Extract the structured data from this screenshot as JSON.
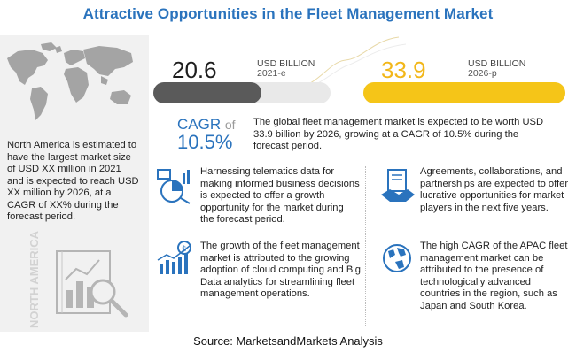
{
  "title": "Attractive Opportunities in the Fleet Management Market",
  "left_panel": {
    "text": "North America is estimated to have the largest market size of USD XX million in 2021 and is expected to reach USD XX million by 2026, at a CAGR of XX% during the forecast period.",
    "vertical_label": "NORTH AMERICA"
  },
  "stats": {
    "current": {
      "value": "20.6",
      "unit": "USD BILLION",
      "year": "2021-e"
    },
    "forecast": {
      "value": "33.9",
      "unit": "USD BILLION",
      "year": "2026-p"
    },
    "cagr_label": "CAGR",
    "cagr_of": "of",
    "cagr_value": "10.5%",
    "summary": "The global fleet management market is expected to be worth USD 33.9 billion by 2026, growing at a CAGR of 10.5% during the forecast period."
  },
  "opportunities": [
    {
      "icon": "telematics-data-icon",
      "text": "Harnessing telematics data for making informed business decisions is expected to offer a growth opportunity for the market during the forecast period."
    },
    {
      "icon": "agreement-handshake-icon",
      "text": "Agreements, collaborations, and partnerships are expected to offer lucrative opportunities for market players in the next five years."
    },
    {
      "icon": "growth-chart-icon",
      "text": "The growth of the fleet management market is attributed to the growing adoption of cloud computing and Big Data analytics for streamlining fleet management operations."
    },
    {
      "icon": "globe-icon",
      "text": "The high CAGR of the APAC fleet management market can be attributed to the presence of technologically advanced countries in the region, such as Japan and South Korea."
    }
  ],
  "source": "Source: MarketsandMarkets Analysis",
  "colors": {
    "accent": "#2a73bd",
    "dark_bar": "#5a5a5a",
    "yellow_bar": "#f5c518"
  },
  "chart_data": {
    "type": "bar",
    "categories": [
      "2021-e",
      "2026-p"
    ],
    "values": [
      20.6,
      33.9
    ],
    "unit": "USD BILLION",
    "cagr": "10.5%"
  }
}
